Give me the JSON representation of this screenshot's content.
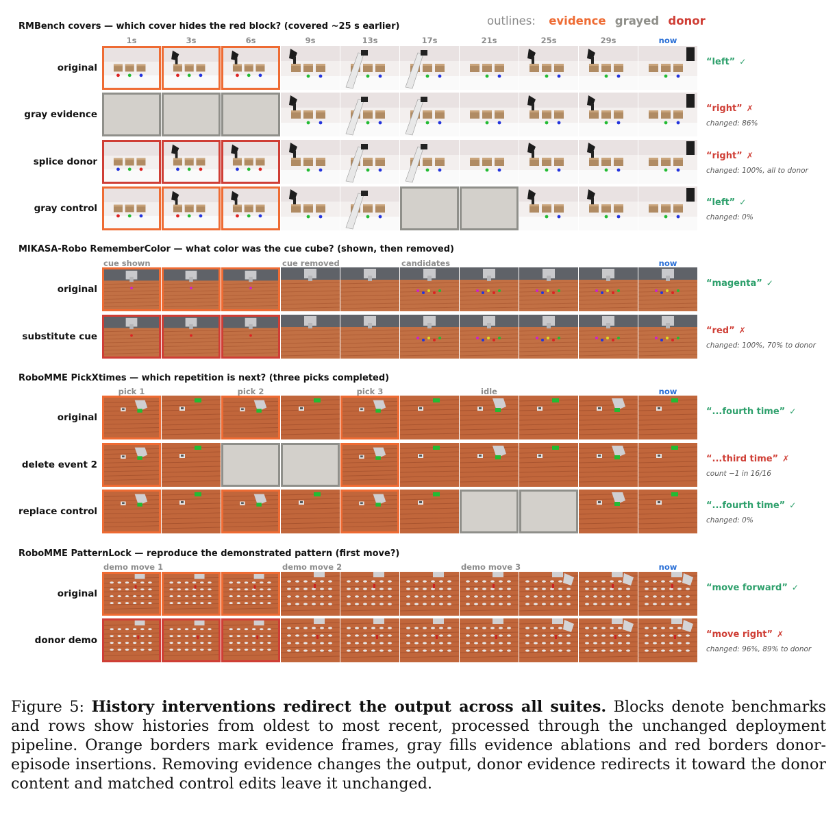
{
  "legend": {
    "label": "outlines:",
    "evidence": "evidence",
    "grayed": "grayed",
    "donor": "donor"
  },
  "colors": {
    "evidence": "#ee6b33",
    "grayed": "#8f8f8a",
    "donor": "#cf3e35",
    "correct": "#2ea06c",
    "wrong": "#cf3e35",
    "now": "#2a6fd6"
  },
  "blocks": [
    {
      "title": "RMBench covers — which cover hides the red block? (covered ~25 s earlier)",
      "scene": "covers",
      "time_labels": [
        {
          "col": 0,
          "text": "1s",
          "center": true
        },
        {
          "col": 1,
          "text": "3s",
          "center": true
        },
        {
          "col": 2,
          "text": "6s",
          "center": true
        },
        {
          "col": 3,
          "text": "9s",
          "center": true
        },
        {
          "col": 4,
          "text": "13s",
          "center": true
        },
        {
          "col": 5,
          "text": "17s",
          "center": true
        },
        {
          "col": 6,
          "text": "21s",
          "center": true
        },
        {
          "col": 7,
          "text": "25s",
          "center": true
        },
        {
          "col": 8,
          "text": "29s",
          "center": true
        },
        {
          "col": 9,
          "text": "now",
          "center": true,
          "now": true
        }
      ],
      "rows": [
        {
          "label": "original",
          "frames": "eeennnnnnn",
          "answer": "“left”",
          "mark": "✓",
          "correct": true,
          "note": ""
        },
        {
          "label": "gray evidence",
          "frames": "gggnnnnnnn",
          "answer": "“right”",
          "mark": "✗",
          "correct": false,
          "note": "changed: 86%"
        },
        {
          "label": "splice donor",
          "frames": "dddnnnnnnn",
          "answer": "“right”",
          "mark": "✗",
          "correct": false,
          "note": "changed: 100%, all to donor"
        },
        {
          "label": "gray control",
          "frames": "eeennggnnn",
          "answer": "“left”",
          "mark": "✓",
          "correct": true,
          "note": "changed: 0%"
        }
      ]
    },
    {
      "title": "MIKASA-Robo RememberColor — what color was the cue cube? (shown, then removed)",
      "scene": "color",
      "time_labels": [
        {
          "col": 0,
          "text": "cue shown",
          "center": false
        },
        {
          "col": 3,
          "text": "cue removed",
          "center": false
        },
        {
          "col": 5,
          "text": "candidates",
          "center": false
        },
        {
          "col": 9,
          "text": "now",
          "center": true,
          "now": true
        }
      ],
      "rows": [
        {
          "label": "original",
          "frames": "eeennnnnnn",
          "answer": "“magenta”",
          "mark": "✓",
          "correct": true,
          "note": ""
        },
        {
          "label": "substitute cue",
          "frames": "dddnnnnnnn",
          "answer": "“red”",
          "mark": "✗",
          "correct": false,
          "note": "changed: 100%, 70% to donor"
        }
      ]
    },
    {
      "title": "RoboMME PickXtimes — which repetition is next? (three picks completed)",
      "scene": "pick",
      "time_labels": [
        {
          "col": 0,
          "text": "pick 1",
          "center": true
        },
        {
          "col": 2,
          "text": "pick 2",
          "center": true
        },
        {
          "col": 4,
          "text": "pick 3",
          "center": true
        },
        {
          "col": 6,
          "text": "idle",
          "center": true
        },
        {
          "col": 9,
          "text": "now",
          "center": true,
          "now": true
        }
      ],
      "rows": [
        {
          "label": "original",
          "frames": "enenennnnn",
          "answer": "“...fourth time”",
          "mark": "✓",
          "correct": true,
          "note": ""
        },
        {
          "label": "delete event 2",
          "frames": "enggennnnn",
          "answer": "“...third time”",
          "mark": "✗",
          "correct": false,
          "note": "count −1 in 16/16"
        },
        {
          "label": "replace control",
          "frames": "enenenggnn",
          "answer": "“...fourth time”",
          "mark": "✓",
          "correct": true,
          "note": "changed: 0%"
        }
      ]
    },
    {
      "title": "RoboMME PatternLock — reproduce the demonstrated pattern (first move?)",
      "scene": "lock",
      "time_labels": [
        {
          "col": 0,
          "text": "demo move 1",
          "center": false
        },
        {
          "col": 3,
          "text": "demo move 2",
          "center": false
        },
        {
          "col": 6,
          "text": "demo move 3",
          "center": false
        },
        {
          "col": 9,
          "text": "now",
          "center": true,
          "now": true
        }
      ],
      "rows": [
        {
          "label": "original",
          "frames": "eeennnnnnn",
          "answer": "“move forward”",
          "mark": "✓",
          "correct": true,
          "note": ""
        },
        {
          "label": "donor demo",
          "frames": "dddnnnnnnn",
          "answer": "“move right”",
          "mark": "✗",
          "correct": false,
          "note": "changed: 96%, 89% to donor"
        }
      ]
    }
  ],
  "caption": {
    "prefix": "Figure 5: ",
    "bold": "History interventions redirect the output across all suites.",
    "text": " Blocks denote benchmarks and rows show histories from oldest to most recent, processed through the unchanged deployment pipeline. Orange borders mark evidence frames, gray fills evidence ablations and red borders donor-episode insertions. Removing evidence changes the output, donor evidence redirects it toward the donor content and matched control edits leave it unchanged."
  }
}
